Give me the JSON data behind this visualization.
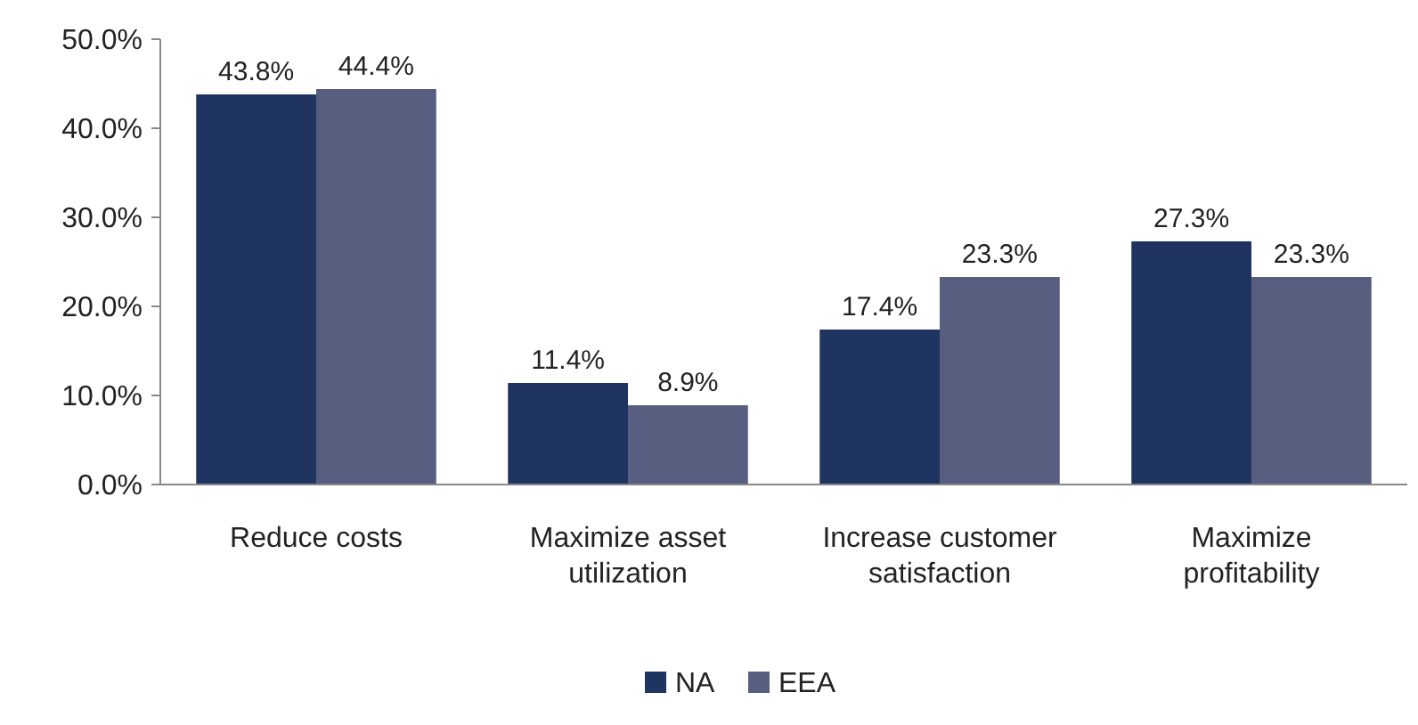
{
  "chart_data": {
    "type": "bar",
    "categories": [
      "Reduce costs",
      "Maximize asset utilization",
      "Increase customer satisfaction",
      "Maximize profitability"
    ],
    "series": [
      {
        "name": "NA",
        "color": "#1f3461",
        "values": [
          43.8,
          11.4,
          17.4,
          27.3
        ],
        "value_labels": [
          "43.8%",
          "11.4%",
          "17.4%",
          "27.3%"
        ]
      },
      {
        "name": "EEA",
        "color": "#575e80",
        "values": [
          44.4,
          8.9,
          23.3,
          23.3
        ],
        "value_labels": [
          "44.4%",
          "8.9%",
          "23.3%",
          "23.3%"
        ]
      }
    ],
    "ylim": [
      0,
      50
    ],
    "yticks": [
      {
        "value": 0,
        "label": "0.0%"
      },
      {
        "value": 10,
        "label": "10.0%"
      },
      {
        "value": 20,
        "label": "20.0%"
      },
      {
        "value": 30,
        "label": "30.0%"
      },
      {
        "value": 40,
        "label": "40.0%"
      },
      {
        "value": 50,
        "label": "50.0%"
      }
    ],
    "grid": false,
    "legend": "bottom"
  }
}
